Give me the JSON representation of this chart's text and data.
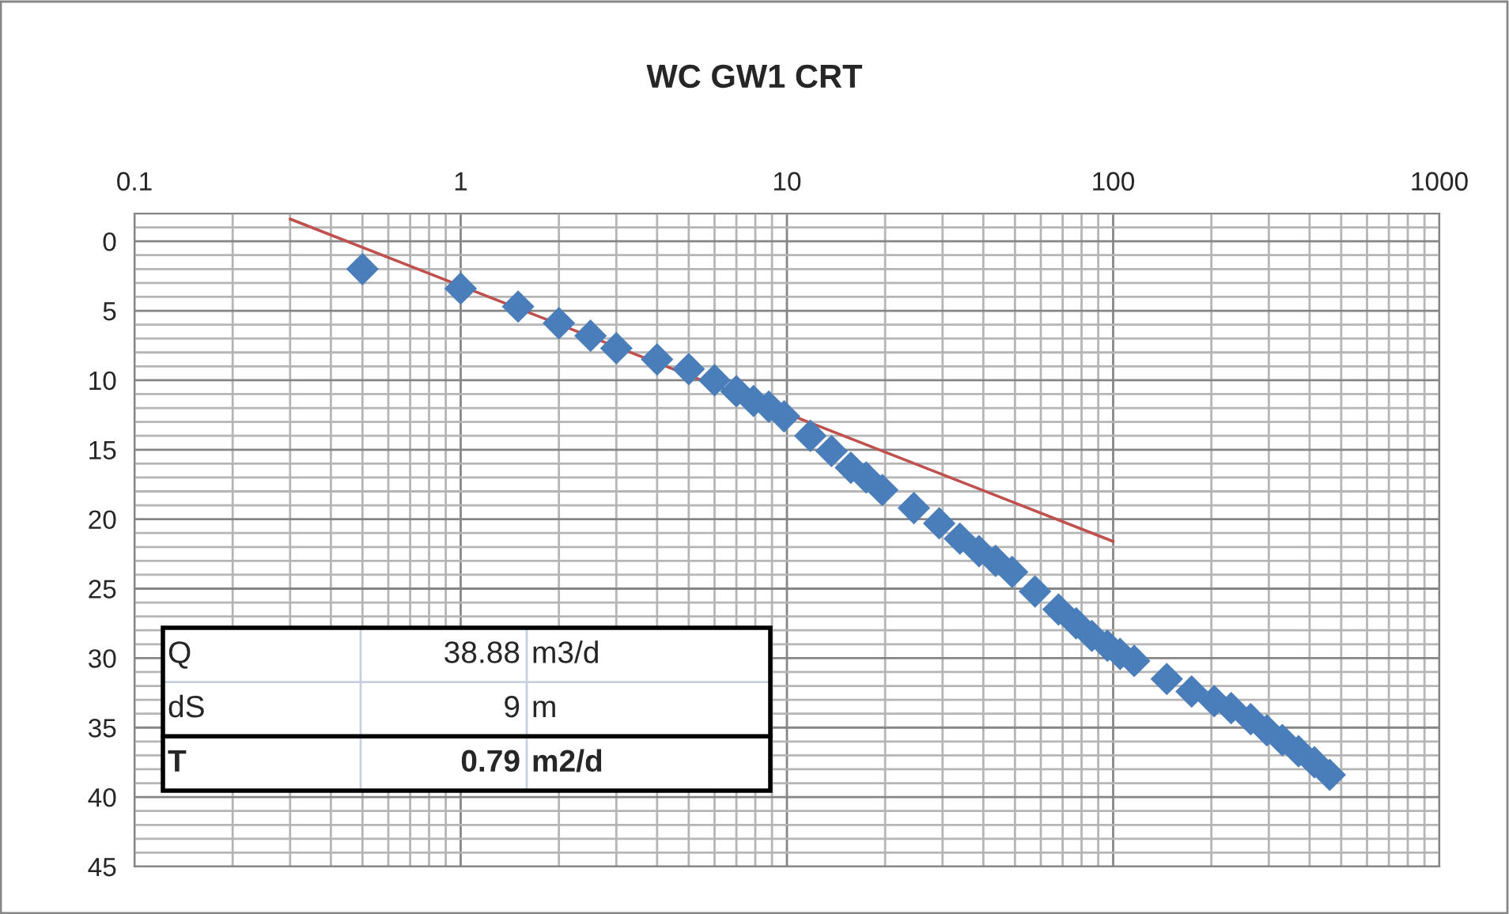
{
  "chart_data": {
    "type": "scatter",
    "title": "WC GW1 CRT",
    "log": "x",
    "grid": true,
    "marker": "diamond",
    "xlim": [
      0.1,
      1000
    ],
    "xticks": [
      {
        "value": 0.1,
        "label": "0.1"
      },
      1,
      10,
      100,
      1000
    ],
    "ylim": [
      45,
      -2
    ],
    "yticks": [
      0,
      5,
      10,
      15,
      20,
      25,
      30,
      35,
      40,
      45
    ],
    "series": [
      {
        "color": "#4a7ebb",
        "x": [
          0.5,
          1,
          1.5,
          2,
          2.5,
          3,
          4,
          5,
          6,
          7,
          7.9,
          8.8,
          9.8,
          11.8,
          13.7,
          15.7,
          17.5,
          19.6,
          24.5,
          29.3,
          33.9,
          38.8,
          43.6,
          49,
          57.6,
          68,
          77,
          86,
          96,
          105,
          116,
          146,
          174,
          204,
          230,
          264,
          296,
          330,
          370,
          414,
          461
        ],
        "values": [
          2.0,
          3.4,
          4.7,
          5.9,
          6.8,
          7.7,
          8.5,
          9.2,
          10.0,
          10.8,
          11.5,
          11.9,
          12.6,
          14.0,
          15.1,
          16.3,
          17.0,
          17.9,
          19.2,
          20.3,
          21.4,
          22.3,
          23.0,
          23.8,
          25.2,
          26.5,
          27.5,
          28.4,
          29.1,
          29.7,
          30.2,
          31.5,
          32.4,
          33.1,
          33.6,
          34.4,
          35.2,
          35.9,
          36.7,
          37.5,
          38.4
        ]
      },
      {
        "type": "line",
        "color": "#c0504d",
        "marker": "none",
        "line_style": "solid",
        "x": [
          0.3,
          100
        ],
        "values": [
          -1.6,
          21.6
        ]
      }
    ],
    "annotations": [
      "Q",
      "38.88",
      "m3/d",
      "dS",
      "9",
      "m",
      "T",
      "0.79",
      "m2/d"
    ]
  }
}
